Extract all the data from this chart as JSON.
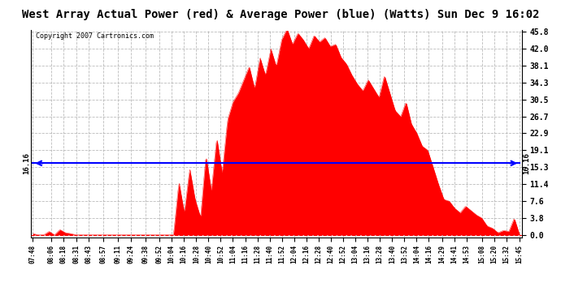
{
  "title": "West Array Actual Power (red) & Average Power (blue) (Watts) Sun Dec 9 16:02",
  "copyright": "Copyright 2007 Cartronics.com",
  "average_power": 16.16,
  "yticks": [
    0.0,
    3.8,
    7.6,
    11.4,
    15.3,
    19.1,
    22.9,
    26.7,
    30.5,
    34.3,
    38.1,
    42.0,
    45.8
  ],
  "ymax": 45.8,
  "ymin": 0.0,
  "xtick_labels": [
    "07:48",
    "08:06",
    "08:18",
    "08:31",
    "08:43",
    "08:57",
    "09:11",
    "09:24",
    "09:38",
    "09:52",
    "10:04",
    "10:16",
    "10:28",
    "10:40",
    "10:52",
    "11:04",
    "11:16",
    "11:28",
    "11:40",
    "11:52",
    "12:04",
    "12:16",
    "12:28",
    "12:40",
    "12:52",
    "13:04",
    "13:16",
    "13:28",
    "13:40",
    "13:52",
    "14:04",
    "14:16",
    "14:29",
    "14:41",
    "14:53",
    "15:08",
    "15:20",
    "15:32",
    "15:45"
  ],
  "bar_color": "#FF0000",
  "line_color": "#0000FF",
  "background_color": "#FFFFFF",
  "grid_color": "#AAAAAA",
  "title_fontsize": 10,
  "copyright_fontsize": 7,
  "power_values": [
    0.3,
    0.0,
    0.0,
    0.8,
    0.0,
    1.2,
    0.5,
    0.3,
    0.0,
    0.0,
    0.0,
    0.0,
    0.0,
    0.0,
    0.0,
    0.0,
    0.0,
    0.0,
    0.0,
    0.0,
    0.0,
    0.0,
    0.0,
    0.0,
    0.0,
    0.0,
    0.0,
    12.0,
    5.0,
    15.0,
    8.0,
    4.0,
    18.0,
    10.0,
    22.0,
    14.0,
    26.0,
    30.0,
    32.0,
    35.0,
    38.0,
    33.0,
    40.0,
    36.0,
    42.0,
    38.0,
    44.0,
    46.5,
    43.0,
    45.5,
    44.0,
    42.0,
    45.0,
    43.5,
    44.5,
    42.5,
    43.0,
    40.0,
    38.5,
    36.0,
    34.0,
    32.5,
    35.0,
    33.0,
    31.0,
    36.0,
    32.0,
    28.0,
    26.7,
    30.0,
    25.0,
    22.9,
    20.0,
    19.1,
    15.3,
    11.4,
    8.0,
    7.6,
    6.0,
    5.0,
    6.5,
    5.5,
    4.5,
    3.8,
    2.0,
    1.5,
    0.5,
    1.0,
    0.8,
    3.8,
    0.0
  ]
}
